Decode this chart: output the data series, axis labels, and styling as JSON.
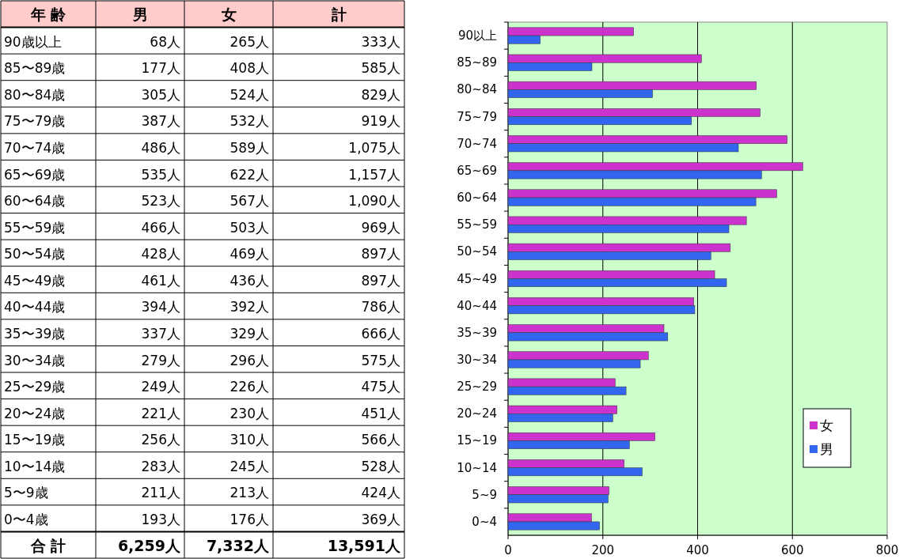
{
  "chart_data": [
    {
      "type": "other",
      "annotations": [
        "年 齢",
        "男",
        "女",
        "計",
        "90歳以上",
        "68人",
        "265人",
        "333人",
        "85〜89歳",
        "177人",
        "408人",
        "585人",
        "80〜84歳",
        "305人",
        "524人",
        "829人",
        "75〜79歳",
        "387人",
        "532人",
        "919人",
        "70〜74歳",
        "486人",
        "589人",
        "1,075人",
        "65〜69歳",
        "535人",
        "622人",
        "1,157人",
        "60〜64歳",
        "523人",
        "567人",
        "1,090人",
        "55〜59歳",
        "466人",
        "503人",
        "969人",
        "50〜54歳",
        "428人",
        "469人",
        "897人",
        "45〜49歳",
        "461人",
        "436人",
        "897人",
        "40〜44歳",
        "394人",
        "392人",
        "786人",
        "35〜39歳",
        "337人",
        "329人",
        "666人",
        "30〜34歳",
        "279人",
        "296人",
        "575人",
        "25〜29歳",
        "249人",
        "226人",
        "475人",
        "20〜24歳",
        "221人",
        "230人",
        "451人",
        "15〜19歳",
        "256人",
        "310人",
        "566人",
        "10〜14歳",
        "283人",
        "245人",
        "528人",
        "5〜9歳",
        "211人",
        "213人",
        "424人",
        "0〜4歳",
        "193人",
        "176人",
        "369人",
        "合 計",
        "6,259人",
        "7,332人",
        "13,591人"
      ]
    },
    {
      "type": "bar",
      "orientation": "horizontal",
      "categories": [
        "90以上",
        "85~89",
        "80~84",
        "75~79",
        "70~74",
        "65~69",
        "60~64",
        "55~59",
        "50~54",
        "45~49",
        "40~44",
        "35~39",
        "30~34",
        "25~29",
        "20~24",
        "15~19",
        "10~14",
        "5~9",
        "0~4"
      ],
      "series": [
        {
          "name": "女",
          "color": "#cc33cc",
          "values": [
            265,
            408,
            524,
            532,
            589,
            622,
            567,
            503,
            469,
            436,
            392,
            329,
            296,
            226,
            230,
            310,
            245,
            213,
            176
          ]
        },
        {
          "name": "男",
          "color": "#3366ee",
          "values": [
            68,
            177,
            305,
            387,
            486,
            535,
            523,
            466,
            428,
            461,
            394,
            337,
            279,
            249,
            221,
            256,
            283,
            211,
            193
          ]
        }
      ],
      "xlim": [
        0,
        800
      ],
      "xticks": [
        0,
        200,
        400,
        600,
        800
      ],
      "grid": "x",
      "legend": "bottom right"
    }
  ]
}
